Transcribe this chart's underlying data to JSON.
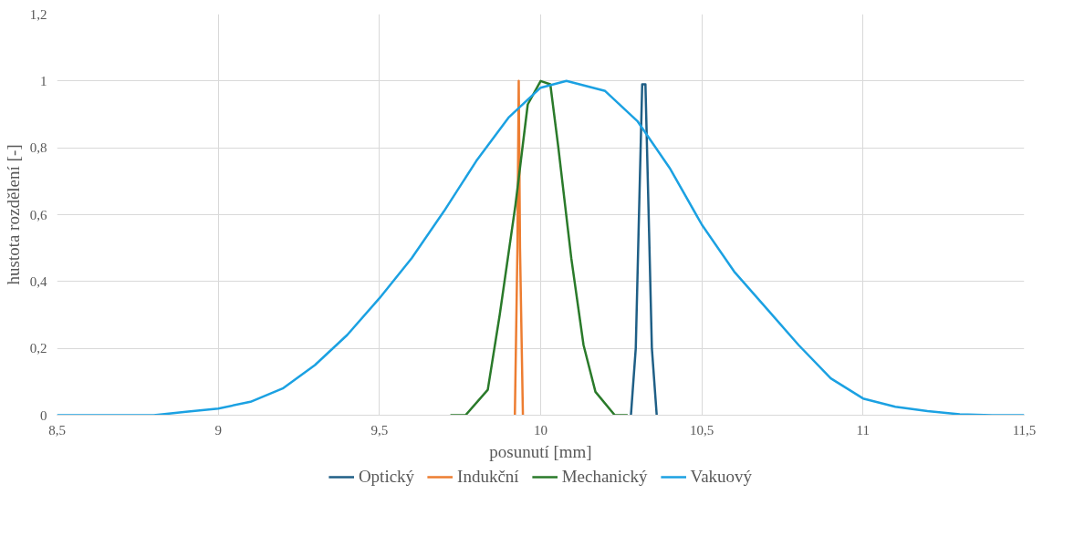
{
  "chart_data": {
    "type": "line",
    "xlabel": "posunutí [mm]",
    "ylabel": "hustota rozdělení [-]",
    "xlim": [
      8.5,
      11.5
    ],
    "xticks": [
      {
        "value": 8.5,
        "label": "8,5"
      },
      {
        "value": 9,
        "label": "9"
      },
      {
        "value": 9.5,
        "label": "9,5"
      },
      {
        "value": 10,
        "label": "10"
      },
      {
        "value": 10.5,
        "label": "10,5"
      },
      {
        "value": 11,
        "label": "11"
      },
      {
        "value": 11.5,
        "label": "11,5"
      }
    ],
    "ylim": [
      0,
      1.2
    ],
    "yticks": [
      0,
      {
        "value": 0.2,
        "label": "0,2"
      },
      {
        "value": 0.4,
        "label": "0,4"
      },
      {
        "value": 0.6,
        "label": "0,6"
      },
      {
        "value": 0.8,
        "label": "0,8"
      },
      1,
      {
        "value": 1.2,
        "label": "1,2"
      }
    ],
    "grid": true,
    "legend": "bottom",
    "marker": "none",
    "line_style": "solid",
    "series": [
      {
        "name": "Optický",
        "color": "#1f5f86",
        "x": [
          10.28,
          10.295,
          10.305,
          10.315,
          10.325,
          10.335,
          10.345,
          10.36
        ],
        "values": [
          0,
          0.2,
          0.6,
          0.99,
          0.99,
          0.6,
          0.2,
          0
        ]
      },
      {
        "name": "Indukční",
        "color": "#ed7d31",
        "x": [
          9.92,
          9.928,
          9.932,
          9.936,
          9.945
        ],
        "values": [
          0,
          0.5,
          1.0,
          0.5,
          0
        ]
      },
      {
        "name": "Mechanický",
        "color": "#2a7a2a",
        "x": [
          9.72,
          9.767,
          9.836,
          9.873,
          9.922,
          9.96,
          10.0,
          10.03,
          10.055,
          10.095,
          10.133,
          10.17,
          10.23,
          10.27
        ],
        "values": [
          0,
          0,
          0.076,
          0.3,
          0.63,
          0.93,
          1.0,
          0.99,
          0.8,
          0.47,
          0.21,
          0.07,
          0,
          0
        ]
      },
      {
        "name": "Vakuový",
        "color": "#1ba1e2",
        "x": [
          8.5,
          8.8,
          8.9,
          9.0,
          9.1,
          9.2,
          9.3,
          9.4,
          9.5,
          9.6,
          9.7,
          9.8,
          9.9,
          10.0,
          10.08,
          10.2,
          10.3,
          10.4,
          10.5,
          10.6,
          10.7,
          10.8,
          10.9,
          11.0,
          11.1,
          11.2,
          11.3,
          11.4,
          11.5
        ],
        "values": [
          0,
          0,
          0.01,
          0.02,
          0.04,
          0.08,
          0.15,
          0.24,
          0.35,
          0.47,
          0.61,
          0.76,
          0.89,
          0.98,
          1.0,
          0.97,
          0.88,
          0.74,
          0.57,
          0.43,
          0.32,
          0.21,
          0.11,
          0.05,
          0.025,
          0.012,
          0.003,
          0,
          0
        ]
      }
    ]
  }
}
